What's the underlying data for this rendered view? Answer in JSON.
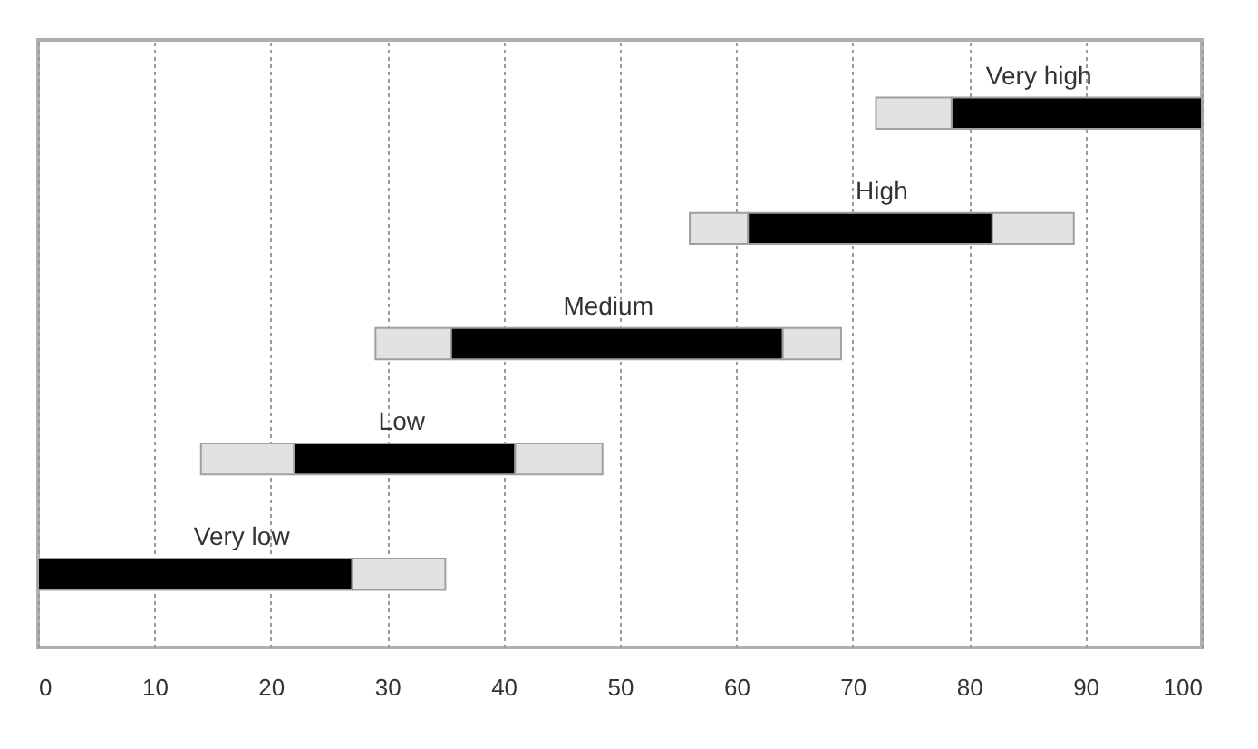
{
  "chart_data": {
    "type": "bar",
    "orientation": "horizontal",
    "categories": [
      "Very high",
      "High",
      "Medium",
      "Low",
      "Very low"
    ],
    "series": [
      {
        "color": "#e2e2e2",
        "base": [
          72,
          56,
          29,
          14,
          null
        ],
        "values": [
          6.5,
          5,
          6.5,
          8,
          null
        ]
      },
      {
        "color": "#000000",
        "base": [
          78.5,
          61,
          35.5,
          22,
          0
        ],
        "values": [
          21.5,
          21,
          28.5,
          19,
          27
        ]
      },
      {
        "color": "#e2e2e2",
        "base": [
          null,
          82,
          64,
          41,
          27
        ],
        "values": [
          null,
          7,
          5,
          7.5,
          8
        ]
      }
    ],
    "xlim": [
      0,
      100
    ],
    "xticks": [
      0,
      10,
      20,
      30,
      40,
      50,
      60,
      70,
      80,
      90,
      100
    ],
    "grid": "x",
    "tick_labels": "x"
  }
}
